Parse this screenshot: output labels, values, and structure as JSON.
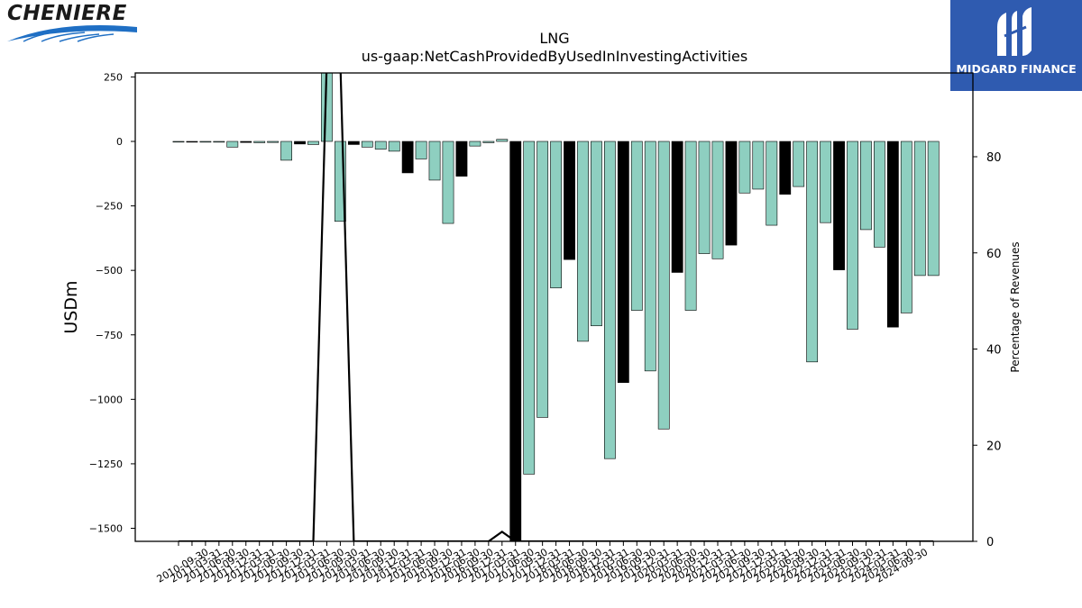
{
  "logos": {
    "left_text": "CHENIERE",
    "right_text": "MIDGARD FINANCE"
  },
  "colors": {
    "bar_normal": "#8ecfc0",
    "bar_q4": "#000000",
    "line": "#000000",
    "logo_right_bg": "#2f5bb0"
  },
  "chart_data": {
    "type": "bar",
    "title": "LNG",
    "subtitle": "us-gaap:NetCashProvidedByUsedInInvestingActivities",
    "ylabel": "USDm",
    "y2label": "Percentage of Revenues",
    "ylim": [
      -1550,
      270
    ],
    "y2lim": [
      0,
      97
    ],
    "yticks": [
      250,
      0,
      -250,
      -500,
      -750,
      -1000,
      -1250,
      -1500
    ],
    "ytick_labels": [
      "250",
      "0",
      "−250",
      "−500",
      "−750",
      "−1000",
      "−1250",
      "−1500"
    ],
    "y2ticks": [
      0,
      20,
      40,
      60,
      80
    ],
    "y2tick_labels": [
      "0",
      "20",
      "40",
      "60",
      "80"
    ],
    "categories": [
      "2010-09-30",
      "2010-12-31",
      "2011-03-31",
      "2011-06-30",
      "2011-09-30",
      "2011-12-31",
      "2012-03-31",
      "2012-06-30",
      "2012-09-30",
      "2012-12-31",
      "2013-03-31",
      "2013-06-30",
      "2013-09-30",
      "2013-12-31",
      "2014-03-31",
      "2014-06-30",
      "2014-09-30",
      "2014-12-31",
      "2015-03-31",
      "2015-06-30",
      "2015-09-30",
      "2015-12-31",
      "2016-03-31",
      "2016-06-30",
      "2016-09-30",
      "2016-12-31",
      "2017-03-31",
      "2017-06-30",
      "2017-09-30",
      "2017-12-31",
      "2018-03-31",
      "2018-06-30",
      "2018-09-30",
      "2018-12-31",
      "2019-03-31",
      "2019-06-30",
      "2019-09-30",
      "2019-12-31",
      "2020-03-31",
      "2020-06-30",
      "2020-09-30",
      "2020-12-31",
      "2021-03-31",
      "2021-06-30",
      "2021-09-30",
      "2021-12-31",
      "2022-03-31",
      "2022-06-30",
      "2022-09-30",
      "2022-12-31",
      "2023-03-31",
      "2023-06-30",
      "2023-09-30",
      "2023-12-31",
      "2024-03-31",
      "2024-06-30",
      "2024-09-30"
    ],
    "xtick_labels": [
      "2010-09-30",
      "2011-03-31",
      "2011-06-30",
      "2011-09-30",
      "2011-12-31",
      "2012-03-31",
      "2012-06-30",
      "2012-09-30",
      "2012-12-31",
      "2013-03-31",
      "2013-06-30",
      "2013-09-30",
      "2014-03-31",
      "2014-06-30",
      "2014-09-30",
      "2014-12-31",
      "2015-03-31",
      "2015-06-30",
      "2015-09-30",
      "2015-12-31",
      "2016-06-30",
      "2016-09-30",
      "2016-12-31",
      "2017-03-31",
      "2017-06-30",
      "2017-09-30",
      "2017-12-31",
      "2018-03-31",
      "2018-06-30",
      "2018-09-30",
      "2018-12-31",
      "2019-03-31",
      "2019-06-30",
      "2019-09-30",
      "2019-12-31",
      "2020-03-31",
      "2020-06-30",
      "2020-09-30",
      "2020-12-31",
      "2021-03-31",
      "2021-06-30",
      "2021-09-30",
      "2021-12-31",
      "2022-03-31",
      "2022-06-30",
      "2022-09-30",
      "2022-12-31",
      "2023-03-31",
      "2023-06-30",
      "2023-09-30",
      "2023-12-31",
      "2024-03-31",
      "2024-06-30",
      "2024-09-30"
    ],
    "values": [
      -2,
      -3,
      -3,
      -3,
      -22,
      -4,
      -5,
      -4,
      -73,
      -10,
      -12,
      270,
      -310,
      -12,
      -22,
      -30,
      -38,
      -122,
      -68,
      -150,
      -318,
      -135,
      -18,
      -5,
      8,
      -1550,
      -1290,
      -1070,
      -568,
      -458,
      -775,
      -715,
      -1230,
      -935,
      -655,
      -890,
      -1115,
      -508,
      -655,
      -435,
      -455,
      -402,
      -200,
      -185,
      -325,
      -205,
      -175,
      -855,
      -315,
      -498,
      -728,
      -342,
      -410,
      -720,
      -665,
      -520,
      -520
    ],
    "q4_flags": [
      false,
      true,
      false,
      false,
      false,
      true,
      false,
      false,
      false,
      true,
      false,
      false,
      false,
      true,
      false,
      false,
      false,
      true,
      false,
      false,
      false,
      true,
      false,
      false,
      false,
      true,
      false,
      false,
      false,
      true,
      false,
      false,
      false,
      true,
      false,
      false,
      false,
      true,
      false,
      false,
      false,
      true,
      false,
      false,
      false,
      true,
      false,
      false,
      false,
      true,
      false,
      false,
      false,
      true,
      false,
      false,
      false
    ],
    "pct_revenue": [
      0,
      0,
      0,
      0,
      0,
      0,
      0,
      0,
      0,
      0,
      0,
      100,
      100,
      0,
      0,
      0,
      0,
      0,
      0,
      0,
      0,
      0,
      0,
      0,
      2,
      0,
      0,
      0,
      0,
      0,
      0,
      0,
      0,
      0,
      0,
      0,
      0,
      0,
      0,
      0,
      0,
      0,
      0,
      0,
      0,
      0,
      0,
      0,
      0,
      0,
      0,
      0,
      0,
      0,
      0,
      0,
      0
    ],
    "grid": false,
    "legend": "none"
  }
}
